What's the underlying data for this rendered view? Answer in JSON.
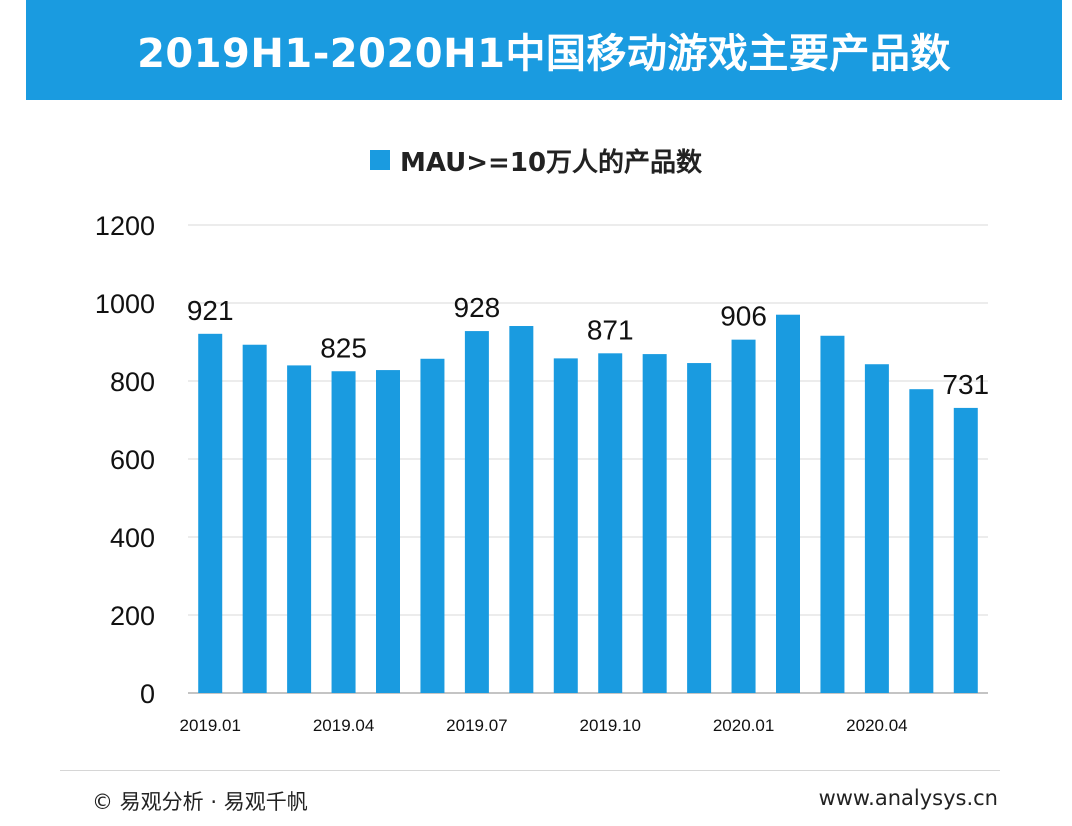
{
  "title": "2019H1-2020H1中国移动游戏主要产品数",
  "footer": {
    "source": "© 易观分析 · 易观千帆",
    "url": "www.analysys.cn"
  },
  "colors": {
    "header": "#1a9be0",
    "bar": "#1a9be0",
    "grid": "#d9d9d9",
    "axis": "#b0b0b0"
  },
  "chart_data": {
    "type": "bar",
    "title": "",
    "xlabel": "",
    "ylabel": "",
    "ylim": [
      0,
      1200
    ],
    "yticks": [
      0,
      200,
      400,
      600,
      800,
      1000,
      1200
    ],
    "grid": true,
    "legend": "top-center",
    "categories": [
      "2019.01",
      "2019.02",
      "2019.03",
      "2019.04",
      "2019.05",
      "2019.06",
      "2019.07",
      "2019.08",
      "2019.09",
      "2019.10",
      "2019.11",
      "2019.12",
      "2020.01",
      "2020.02",
      "2020.03",
      "2020.04",
      "2020.05",
      "2020.06"
    ],
    "x_tick_labels": [
      "2019.01",
      "",
      "",
      "2019.04",
      "",
      "",
      "2019.07",
      "",
      "",
      "2019.10",
      "",
      "",
      "2020.01",
      "",
      "",
      "2020.04",
      "",
      ""
    ],
    "series": [
      {
        "name": "MAU>=10万人的产品数",
        "values": [
          921,
          893,
          840,
          825,
          828,
          857,
          928,
          941,
          858,
          871,
          869,
          846,
          906,
          970,
          916,
          843,
          779,
          731
        ],
        "data_labels": [
          "921",
          "",
          "",
          "825",
          "",
          "",
          "928",
          "",
          "",
          "871",
          "",
          "",
          "906",
          "",
          "",
          "",
          "",
          "731"
        ]
      }
    ]
  }
}
